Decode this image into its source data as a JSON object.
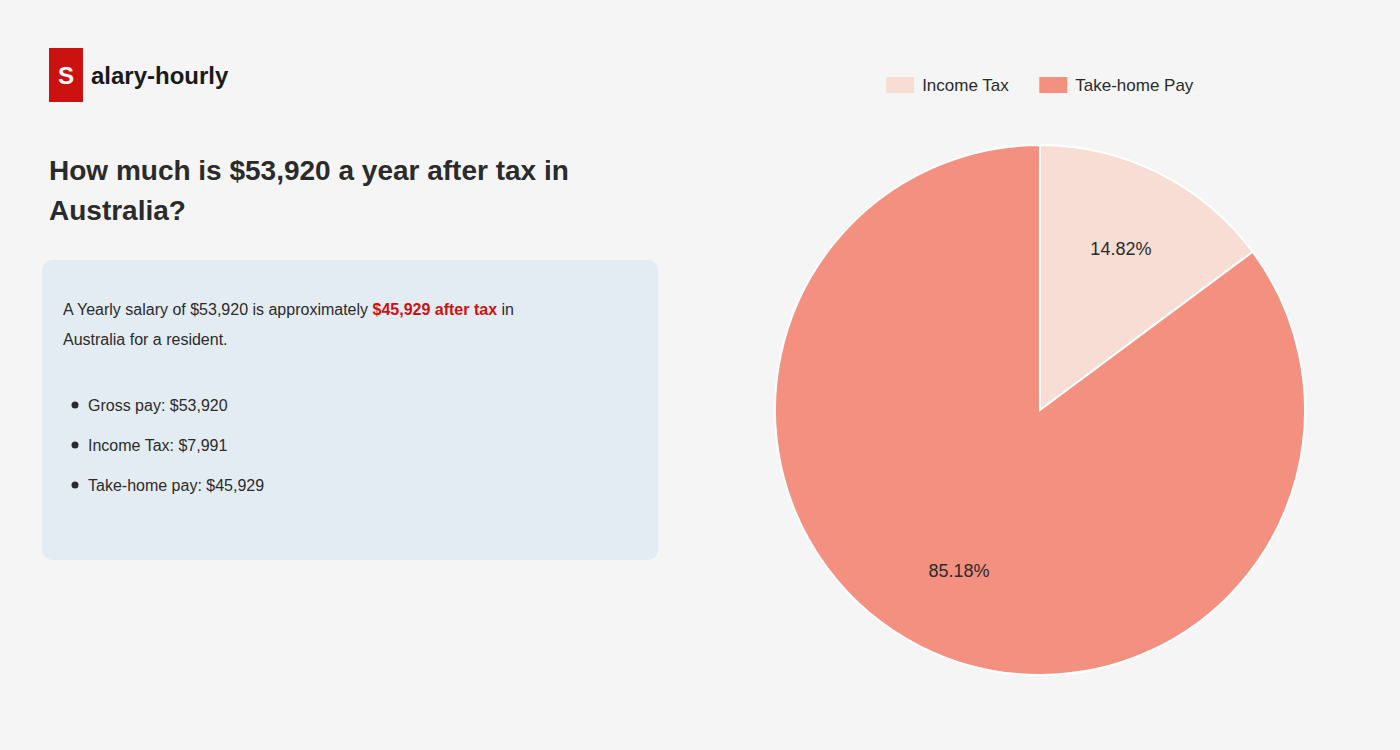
{
  "chart_data": {
    "type": "pie",
    "title": "How much is $53,920 a year after tax in\nAustralia?",
    "categories": [
      "Income Tax",
      "Take-home Pay"
    ],
    "values": [
      14.82,
      85.18
    ],
    "value_labels": [
      "14.82%",
      "85.18%"
    ],
    "colors": [
      "#f7ddd4",
      "#f49080"
    ],
    "data_labels": true,
    "legend": "top",
    "annotations": [
      "S",
      "alary-hourly",
      "A Yearly salary of $53,920 is approximately ",
      "$45,929 after tax",
      " in",
      "Australia for a resident.",
      "Gross pay: $53,920",
      "Income Tax: $7,991",
      "Take-home pay: $45,929"
    ]
  }
}
